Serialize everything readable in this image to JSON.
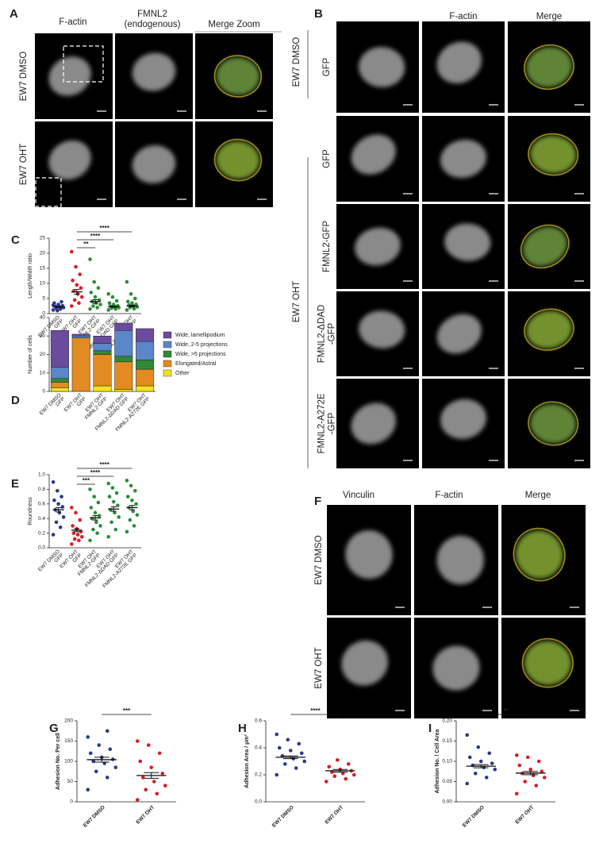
{
  "figure": {
    "panel_A": {
      "letter": "A",
      "columns": [
        "F-actin",
        "FMNL2",
        "(endogenous)",
        "Merge Zoom"
      ],
      "rows": [
        "EW7 DMSO",
        "EW7 OHT"
      ]
    },
    "panel_B": {
      "letter": "B",
      "columns": [
        "F-actin",
        "Merge"
      ],
      "groups": [
        "EW7 DMSO",
        "EW7 OHT"
      ],
      "rows": [
        [
          "GFP"
        ],
        [
          "GFP"
        ],
        [
          "FMNL2-GFP"
        ],
        [
          "FMNL2-ΔDAD",
          "-GFP"
        ],
        [
          "FMNL2-A272E",
          "-GFP"
        ]
      ]
    },
    "panel_F": {
      "letter": "F",
      "columns": [
        "Vinculin",
        "F-actin",
        "Merge"
      ],
      "rows": [
        "EW7 DMSO",
        "EW7 OHT"
      ]
    }
  },
  "chart_data": [
    {
      "type": "dotplot",
      "label": "C",
      "ylabel": "Length/Width ratio",
      "categories": [
        [
          "EW7 DMSO",
          "GFP"
        ],
        [
          "EW7 OHT",
          "GFP"
        ],
        [
          "EW7 OHT",
          "FMNL2-GFP"
        ],
        [
          "EW7 OHT",
          "FMNL2-ΔDAD GFP"
        ],
        [
          "EW7 OHT",
          "FMNL2-A272E GFP"
        ]
      ],
      "colors": [
        "#2b3990",
        "#d71f26",
        "#2e8b3a",
        "#2e8b3a",
        "#2e8b3a"
      ],
      "values": [
        [
          1.2,
          1.5,
          1.8,
          2.0,
          2.2,
          2.4,
          2.6,
          3.0,
          3.5,
          3.9,
          1.0,
          2.8
        ],
        [
          2.5,
          3.5,
          4.5,
          5.5,
          6.5,
          7.5,
          8.5,
          9.5,
          11,
          13,
          15.5,
          20.5
        ],
        [
          1.5,
          2.0,
          2.5,
          3.0,
          3.5,
          4.0,
          4.5,
          5.5,
          7.0,
          8.5,
          10.5,
          18
        ],
        [
          1.2,
          1.5,
          1.8,
          2.0,
          2.2,
          2.4,
          2.6,
          3.0,
          3.5,
          4.2,
          5.5,
          6.5
        ],
        [
          1.2,
          1.6,
          2.0,
          2.2,
          2.5,
          2.8,
          3.0,
          3.5,
          4.0,
          5.0,
          6.5,
          10.5
        ]
      ],
      "means": [
        2.2,
        7.2,
        4.0,
        2.3,
        2.5
      ],
      "sem": [
        0.2,
        0.8,
        0.6,
        0.2,
        0.3
      ],
      "significance": [
        "****",
        "****",
        "**"
      ],
      "ylim": [
        0,
        25
      ],
      "yticks": [
        0,
        5,
        10,
        15,
        20,
        25
      ]
    },
    {
      "type": "stacked_bar",
      "label": "D",
      "ylabel": "Number of cells",
      "categories": [
        [
          "EW7 DMSO",
          "GFP"
        ],
        [
          "EW7 OHT",
          "GFP"
        ],
        [
          "EW7 OHT",
          "FMNL2-GFP"
        ],
        [
          "EW7 OHT",
          "FMNL2-ΔDAD GFP"
        ],
        [
          "EW7 OHT",
          "FMNL2-A272E GFP"
        ]
      ],
      "series": [
        {
          "name": "Other",
          "color": "#f4e31c",
          "values": [
            2,
            0,
            3,
            1,
            3
          ]
        },
        {
          "name": "Elongated/Astral",
          "color": "#e28b22",
          "values": [
            3,
            29,
            17,
            15,
            9
          ]
        },
        {
          "name": "Wide, >5 projections",
          "color": "#2f8a35",
          "values": [
            2,
            0,
            2,
            3,
            5
          ]
        },
        {
          "name": "Wide, 2-5 projections",
          "color": "#5b86c9",
          "values": [
            6,
            1,
            4,
            14,
            10
          ]
        },
        {
          "name": "Wide, lamellipodium",
          "color": "#6b4b9e",
          "values": [
            20,
            1,
            4,
            4,
            7
          ]
        }
      ],
      "ylim": [
        0,
        40
      ],
      "yticks": [
        0,
        10,
        20,
        30,
        40
      ]
    },
    {
      "type": "dotplot",
      "label": "E",
      "ylabel": "Roundness",
      "categories": [
        [
          "EW7 DMSO",
          "GFP"
        ],
        [
          "EW7 OHT",
          "GFP"
        ],
        [
          "EW7 OHT",
          "FMNL2-GFP"
        ],
        [
          "EW7 OHT",
          "FMNL2-ΔDAD GFP"
        ],
        [
          "EW7 OHT",
          "FMNL2-A272E GFP"
        ]
      ],
      "colors": [
        "#2b3990",
        "#d71f26",
        "#2e8b3a",
        "#2e8b3a",
        "#2e8b3a"
      ],
      "values": [
        [
          0.18,
          0.28,
          0.35,
          0.42,
          0.48,
          0.52,
          0.56,
          0.6,
          0.65,
          0.7,
          0.78,
          0.9
        ],
        [
          0.05,
          0.1,
          0.12,
          0.15,
          0.18,
          0.2,
          0.22,
          0.26,
          0.3,
          0.38,
          0.48,
          0.55
        ],
        [
          0.1,
          0.2,
          0.25,
          0.3,
          0.35,
          0.4,
          0.44,
          0.48,
          0.55,
          0.62,
          0.7,
          0.8
        ],
        [
          0.15,
          0.25,
          0.35,
          0.42,
          0.48,
          0.52,
          0.58,
          0.63,
          0.7,
          0.75,
          0.82,
          0.88
        ],
        [
          0.22,
          0.3,
          0.38,
          0.45,
          0.5,
          0.55,
          0.6,
          0.65,
          0.7,
          0.78,
          0.85,
          0.92
        ]
      ],
      "means": [
        0.52,
        0.24,
        0.41,
        0.53,
        0.55
      ],
      "sem": [
        0.03,
        0.02,
        0.03,
        0.03,
        0.03
      ],
      "significance": [
        "****",
        "****",
        "***"
      ],
      "ylim": [
        0,
        1
      ],
      "yticks": [
        {
          "value": 0,
          "label": "0.0"
        },
        0.2,
        0.4,
        0.6,
        0.8,
        {
          "value": 1,
          "label": "1.0"
        }
      ]
    },
    {
      "type": "dotplot",
      "label": "G",
      "ylabel": "Adhesion No. Per cell",
      "categories": [
        [
          "EW7 DMSO"
        ],
        [
          "EW7 OHT"
        ]
      ],
      "colors": [
        "#2b3990",
        "#d71f26"
      ],
      "values": [
        [
          30,
          60,
          75,
          85,
          95,
          100,
          105,
          110,
          120,
          130,
          140,
          160,
          175
        ],
        [
          5,
          20,
          30,
          40,
          50,
          60,
          70,
          85,
          100,
          120,
          140,
          150
        ]
      ],
      "means": [
        104,
        65
      ],
      "sem": [
        6,
        7
      ],
      "significance": [
        "***"
      ],
      "ylim": [
        0,
        200
      ],
      "yticks": [
        0,
        50,
        100,
        150,
        200
      ]
    },
    {
      "type": "dotplot",
      "label": "H",
      "ylabel": "Adhesion Area / μm²",
      "categories": [
        [
          "EW7 DMSO"
        ],
        [
          "EW7 OHT"
        ]
      ],
      "colors": [
        "#2b3990",
        "#d71f26"
      ],
      "values": [
        [
          0.2,
          0.25,
          0.28,
          0.3,
          0.32,
          0.34,
          0.36,
          0.38,
          0.4,
          0.43,
          0.46,
          0.5
        ],
        [
          0.15,
          0.17,
          0.19,
          0.2,
          0.21,
          0.22,
          0.23,
          0.24,
          0.26,
          0.28,
          0.31
        ]
      ],
      "means": [
        0.33,
        0.23
      ],
      "sem": [
        0.01,
        0.01
      ],
      "significance": [
        "****"
      ],
      "ylim": [
        0,
        0.6
      ],
      "yticks": [
        {
          "value": 0,
          "label": "0.0"
        },
        0.2,
        0.4,
        0.6
      ]
    },
    {
      "type": "dotplot",
      "label": "I",
      "ylabel": "Adhesion No. / Cell Area",
      "categories": [
        [
          "EW7 DMSO"
        ],
        [
          "EW7 OHT"
        ]
      ],
      "colors": [
        "#2b3990",
        "#d71f26"
      ],
      "values": [
        [
          0.045,
          0.06,
          0.07,
          0.08,
          0.085,
          0.09,
          0.095,
          0.1,
          0.11,
          0.12,
          0.135,
          0.165
        ],
        [
          0.02,
          0.04,
          0.05,
          0.06,
          0.065,
          0.07,
          0.075,
          0.08,
          0.09,
          0.1,
          0.11,
          0.115
        ]
      ],
      "means": [
        0.088,
        0.071
      ],
      "sem": [
        0.004,
        0.004
      ],
      "significance": [
        "**"
      ],
      "ylim": [
        0,
        0.2
      ],
      "yticks": [
        {
          "value": 0,
          "label": "0.00"
        },
        {
          "value": 0.05,
          "label": "0.05"
        },
        {
          "value": 0.1,
          "label": "0.10"
        },
        {
          "value": 0.15,
          "label": "0.15"
        },
        {
          "value": 0.2,
          "label": "0.20"
        }
      ]
    }
  ]
}
